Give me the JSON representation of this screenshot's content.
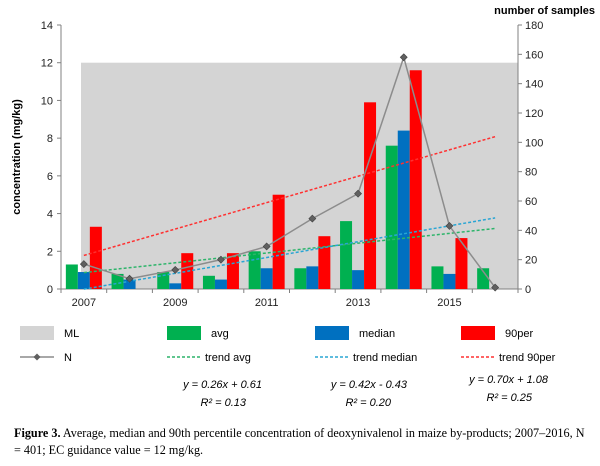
{
  "chart_data": {
    "type": "bar",
    "x": [
      2007,
      2008,
      2009,
      2010,
      2011,
      2012,
      2013,
      2014,
      2015,
      2016
    ],
    "x_tick_labels": [
      "2007",
      "2009",
      "2011",
      "2013",
      "2015"
    ],
    "ylabel": "concentration (mg/kg)",
    "y2label": "number of samples",
    "ylim": [
      0,
      14
    ],
    "y_ticks": [
      0,
      2,
      4,
      6,
      8,
      10,
      12,
      14
    ],
    "y2lim": [
      0,
      180
    ],
    "y2_ticks": [
      0,
      20,
      40,
      60,
      80,
      100,
      120,
      140,
      160,
      180
    ],
    "ml": {
      "name": "ML",
      "value": 12,
      "color": "#d4d4d4"
    },
    "series": [
      {
        "key": "avg",
        "name": "avg",
        "color": "#00b050",
        "values": [
          1.3,
          0.8,
          0.9,
          0.7,
          2.0,
          1.1,
          3.6,
          7.6,
          1.2,
          1.1
        ]
      },
      {
        "key": "median",
        "name": "median",
        "color": "#0070c0",
        "values": [
          0.9,
          0.5,
          0.3,
          0.5,
          1.1,
          1.2,
          1.0,
          8.4,
          0.8,
          null
        ]
      },
      {
        "key": "p90",
        "name": "90per",
        "color": "#ff0000",
        "values": [
          3.3,
          null,
          1.9,
          1.9,
          5.0,
          2.8,
          9.9,
          11.6,
          2.7,
          null
        ]
      }
    ],
    "line": {
      "name": "N",
      "axis": "right",
      "color": "#8c8c8c",
      "values": [
        17,
        7,
        13,
        20,
        29,
        48,
        65,
        158,
        43,
        1
      ]
    },
    "trends": [
      {
        "name": "trend avg",
        "color": "#2db46a",
        "slope": 0.26,
        "intercept": 0.61,
        "equation": "y = 0.26x + 0.61",
        "r2": "R² = 0.13"
      },
      {
        "name": "trend median",
        "color": "#28a5d4",
        "slope": 0.42,
        "intercept": -0.43,
        "equation": "y = 0.42x - 0.43",
        "r2": "R² = 0.20"
      },
      {
        "name": "trend 90per",
        "color": "#ff3030",
        "slope": 0.7,
        "intercept": 1.08,
        "equation": "y = 0.70x + 1.08",
        "r2": "R² = 0.25"
      }
    ]
  },
  "caption": {
    "label": "Figure 3.",
    "text": "Average, median and 90th percentile concentration of deoxynivalenol in maize by-products; 2007–2016, N = 401; EC guidance value = 12 mg/kg."
  }
}
